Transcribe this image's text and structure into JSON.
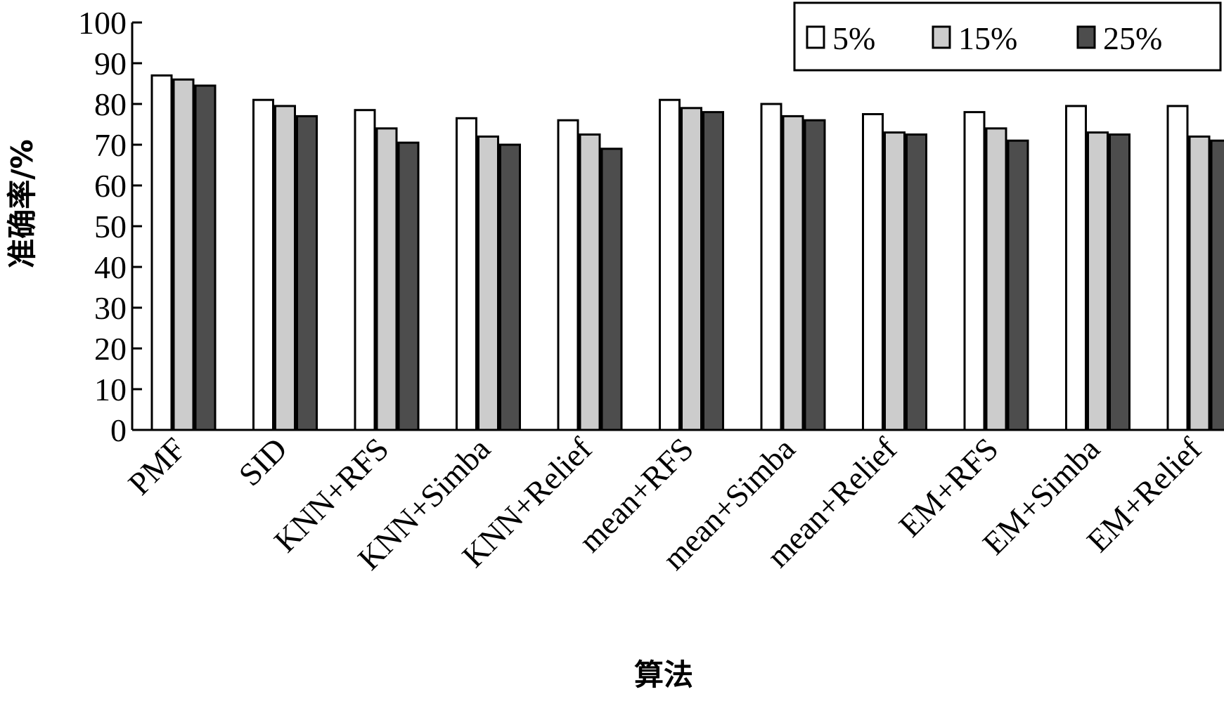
{
  "chart_data": {
    "type": "bar",
    "title": "",
    "xlabel": "算法",
    "ylabel": "准确率/%",
    "ylim": [
      0,
      100
    ],
    "yticks": [
      0,
      10,
      20,
      30,
      40,
      50,
      60,
      70,
      80,
      90,
      100
    ],
    "grid": false,
    "legend_position": "top-right",
    "categories": [
      "PMF",
      "SID",
      "KNN+RFS",
      "KNN+Simba",
      "KNN+Relief",
      "mean+RFS",
      "mean+Simba",
      "mean+Relief",
      "EM+RFS",
      "EM+Simba",
      "EM+Relief"
    ],
    "series": [
      {
        "name": "5%",
        "color": "#ffffff",
        "values": [
          87,
          81,
          78.5,
          76.5,
          76,
          81,
          80,
          77.5,
          78,
          79.5,
          79.5
        ]
      },
      {
        "name": "15%",
        "color": "#cccccc",
        "values": [
          86,
          79.5,
          74,
          72,
          72.5,
          79,
          77,
          73,
          74,
          73,
          72
        ]
      },
      {
        "name": "25%",
        "color": "#4d4d4d",
        "values": [
          84.5,
          77,
          70.5,
          70,
          69,
          78,
          76,
          72.5,
          71,
          72.5,
          71
        ]
      }
    ]
  }
}
